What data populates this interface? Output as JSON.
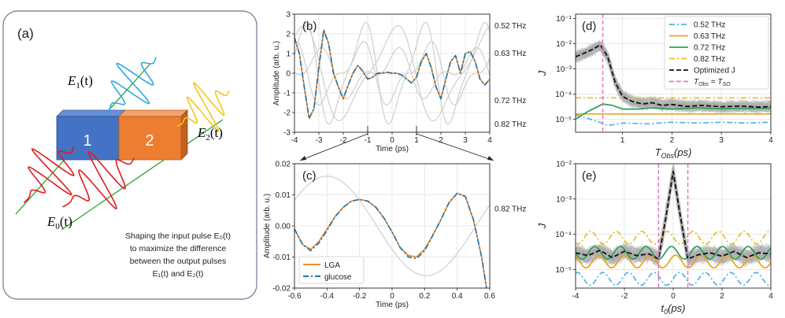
{
  "panel_a": {
    "label": "(a)",
    "block1": "1",
    "block2": "2",
    "e0": "E",
    "e0_sub": "0",
    "e0_arg": "(t)",
    "e1": "E",
    "e1_sub": "1",
    "e1_arg": "(t)",
    "e2": "E",
    "e2_sub": "2",
    "e2_arg": "(t)",
    "caption_line1": "Shaping the input pulse E₀(t)",
    "caption_line2": "to maximize the difference",
    "caption_line3": "between the output pulses",
    "caption_line4": "E₁(t)  and E₂(t)",
    "colors": {
      "block1": "#4472c4",
      "block2": "#ed7d31",
      "e0": "#e31a1c",
      "e1": "#29abe2",
      "e2": "#f5c518",
      "line": "#2ca02c"
    }
  },
  "chart_data": [
    {
      "panel": "(b)",
      "type": "line",
      "xlabel": "Time (ps)",
      "ylabel": "Amplitude (arb. u.)",
      "xlim": [
        -4,
        4
      ],
      "ylim": [
        -3,
        3
      ],
      "xticks": [
        "-4",
        "-3",
        "-2",
        "-1",
        "0",
        "1",
        "2",
        "3",
        "4"
      ],
      "yticks": [
        "-3",
        "-2",
        "-1",
        "0",
        "1",
        "2",
        "3"
      ],
      "grid": true,
      "right_labels": [
        "0.52 THz",
        "0.63 THz",
        "0.72 THz",
        "0.82 THz"
      ],
      "right_label_y": [
        2.4,
        1.0,
        -1.4,
        -2.6
      ],
      "series": [
        {
          "name": "LGA",
          "color": "#f28e2b",
          "style": "solid",
          "x": [
            -4,
            -3.8,
            -3.6,
            -3.4,
            -3.2,
            -3.0,
            -2.8,
            -2.6,
            -2.4,
            -2.2,
            -2.0,
            -1.8,
            -1.6,
            -1.4,
            -1.2,
            -1.0,
            -0.8,
            -0.6,
            -0.4,
            -0.2,
            0.0,
            0.2,
            0.4,
            0.6,
            0.8,
            1.0,
            1.2,
            1.4,
            1.6,
            1.8,
            2.0,
            2.2,
            2.4,
            2.6,
            2.8,
            3.0,
            3.2,
            3.4,
            3.6,
            3.8,
            4.0
          ],
          "values": [
            1.8,
            1.0,
            -0.7,
            -2.3,
            -1.8,
            0.3,
            2.2,
            1.5,
            0.0,
            -0.7,
            -1.3,
            -0.6,
            0.0,
            0.4,
            0.1,
            -0.3,
            -0.2,
            0.0,
            0.0,
            0.05,
            0.0,
            0.0,
            -0.1,
            -0.3,
            -0.5,
            -0.2,
            0.6,
            1.0,
            0.3,
            -0.7,
            -1.3,
            -0.3,
            0.6,
            0.9,
            0.0,
            1.0,
            1.1,
            0.6,
            -0.3,
            -0.6,
            -0.3
          ]
        },
        {
          "name": "glucose",
          "color": "#1f77b4",
          "style": "dashdot",
          "x": [
            -4,
            -3.8,
            -3.6,
            -3.4,
            -3.2,
            -3.0,
            -2.8,
            -2.6,
            -2.4,
            -2.2,
            -2.0,
            -1.8,
            -1.6,
            -1.4,
            -1.2,
            -1.0,
            -0.8,
            -0.6,
            -0.4,
            -0.2,
            0.0,
            0.2,
            0.4,
            0.6,
            0.8,
            1.0,
            1.2,
            1.4,
            1.6,
            1.8,
            2.0,
            2.2,
            2.4,
            2.6,
            2.8,
            3.0,
            3.2,
            3.4,
            3.6,
            3.8,
            4.0
          ],
          "values": [
            1.8,
            1.0,
            -0.7,
            -2.3,
            -1.8,
            0.3,
            2.2,
            1.5,
            0.0,
            -0.7,
            -1.3,
            -0.6,
            0.0,
            0.4,
            0.1,
            -0.3,
            -0.2,
            0.0,
            0.0,
            0.05,
            0.0,
            0.0,
            -0.1,
            -0.3,
            -0.5,
            -0.2,
            0.6,
            1.0,
            0.3,
            -0.7,
            -1.3,
            -0.3,
            0.6,
            0.9,
            0.0,
            1.0,
            1.1,
            0.6,
            -0.3,
            -0.6,
            -0.3
          ]
        }
      ]
    },
    {
      "panel": "(c)",
      "type": "line",
      "xlabel": "Time (ps)",
      "ylabel": "Amplitude (arb. u.)",
      "xlim": [
        -0.6,
        0.6
      ],
      "ylim": [
        -0.02,
        0.02
      ],
      "xticks": [
        "-0.6",
        "-0.4",
        "-0.2",
        "0",
        "0.2",
        "0.4",
        "0.6"
      ],
      "yticks": [
        "-0.02",
        "-0.01",
        "0.00",
        "0.01",
        "0.02"
      ],
      "grid": true,
      "right_labels": [
        "0.82 THz"
      ],
      "legend": [
        "LGA",
        "glucose"
      ],
      "legend_position": "bottom-left",
      "series": [
        {
          "name": "LGA",
          "color": "#f28e2b",
          "style": "solid",
          "x": [
            -0.6,
            -0.55,
            -0.5,
            -0.45,
            -0.4,
            -0.35,
            -0.3,
            -0.25,
            -0.2,
            -0.15,
            -0.1,
            -0.05,
            0.0,
            0.05,
            0.1,
            0.15,
            0.2,
            0.25,
            0.3,
            0.35,
            0.4,
            0.45,
            0.5,
            0.55,
            0.58
          ],
          "values": [
            -0.001,
            -0.006,
            -0.0075,
            -0.005,
            -0.001,
            0.003,
            0.006,
            0.008,
            0.0085,
            0.008,
            0.006,
            0.0025,
            -0.002,
            -0.007,
            -0.0095,
            -0.01,
            -0.0075,
            -0.003,
            0.002,
            0.0075,
            0.0105,
            0.0095,
            0.002,
            -0.01,
            -0.02
          ]
        },
        {
          "name": "glucose",
          "color": "#1f77b4",
          "style": "dashdot",
          "x": [
            -0.6,
            -0.55,
            -0.5,
            -0.45,
            -0.4,
            -0.35,
            -0.3,
            -0.25,
            -0.2,
            -0.15,
            -0.1,
            -0.05,
            0.0,
            0.05,
            0.1,
            0.15,
            0.2,
            0.25,
            0.3,
            0.35,
            0.4,
            0.45,
            0.5,
            0.55,
            0.58
          ],
          "values": [
            -0.001,
            -0.006,
            -0.008,
            -0.0055,
            -0.0015,
            0.003,
            0.006,
            0.008,
            0.0085,
            0.008,
            0.006,
            0.0025,
            -0.002,
            -0.007,
            -0.01,
            -0.0105,
            -0.008,
            -0.003,
            0.002,
            0.0075,
            0.0105,
            0.0095,
            0.002,
            -0.01,
            -0.02
          ]
        }
      ]
    },
    {
      "panel": "(d)",
      "type": "line",
      "xlabel": "T_Obs(ps)",
      "ylabel": "J",
      "xscale": "linear",
      "yscale": "log",
      "xlim": [
        0.05,
        4
      ],
      "ylim": [
        3e-06,
        0.15
      ],
      "xticks": [
        "1",
        "2",
        "3",
        "4"
      ],
      "yticks": [
        "10⁻⁵",
        "10⁻⁴",
        "10⁻³",
        "10⁻²",
        "10⁻¹"
      ],
      "grid": true,
      "vline": 0.6,
      "legend": [
        "0.52 THz",
        "0.63 THz",
        "0.72 THz",
        "0.82 THz",
        "Optimized J",
        "T_Obs = T_SO"
      ],
      "legend_position": "top-right",
      "series": [
        {
          "name": "0.52 THz",
          "color": "#4fb3e8",
          "style": "dashdot",
          "x": [
            0.05,
            0.5,
            0.7,
            1.0,
            1.5,
            2.0,
            2.5,
            3.0,
            3.5,
            4.0
          ],
          "values": [
            1.5e-05,
            8e-06,
            5.5e-06,
            7e-06,
            6.5e-06,
            7.5e-06,
            7e-06,
            7.5e-06,
            7e-06,
            7.5e-06
          ]
        },
        {
          "name": "0.63 THz",
          "color": "#f0a020",
          "style": "solid",
          "x": [
            0.05,
            0.5,
            1.0,
            1.5,
            2.0,
            2.5,
            3.0,
            3.5,
            4.0
          ],
          "values": [
            1.6e-05,
            1.6e-05,
            1.6e-05,
            1.6e-05,
            1.6e-05,
            1.6e-05,
            1.6e-05,
            1.6e-05,
            1.6e-05
          ]
        },
        {
          "name": "0.72 THz",
          "color": "#2ca05a",
          "style": "solid",
          "x": [
            0.05,
            0.3,
            0.6,
            0.8,
            1.0,
            1.3,
            1.6,
            2.0,
            2.5,
            3.0,
            3.5,
            4.0
          ],
          "values": [
            1e-05,
            2e-05,
            4e-05,
            3.5e-05,
            2.5e-05,
            2.5e-05,
            2.8e-05,
            2.5e-05,
            2.8e-05,
            2.6e-05,
            2.7e-05,
            2.7e-05
          ]
        },
        {
          "name": "0.82 THz",
          "color": "#e8c020",
          "style": "dashdot",
          "x": [
            0.05,
            0.5,
            1.0,
            1.5,
            2.0,
            2.5,
            3.0,
            3.5,
            4.0
          ],
          "values": [
            7e-05,
            7e-05,
            7e-05,
            7e-05,
            7e-05,
            7e-05,
            7e-05,
            7e-05,
            7e-05
          ]
        },
        {
          "name": "Optimized J",
          "color": "#111111",
          "style": "dashed",
          "x": [
            0.05,
            0.2,
            0.4,
            0.55,
            0.7,
            0.85,
            1.0,
            1.2,
            1.4,
            1.6,
            1.8,
            2.0,
            2.3,
            2.6,
            3.0,
            3.4,
            3.8,
            4.0
          ],
          "values": [
            0.003,
            0.004,
            0.006,
            0.009,
            0.003,
            0.0003,
            8e-05,
            5e-05,
            4e-05,
            4.5e-05,
            3.5e-05,
            3.8e-05,
            3.2e-05,
            3.5e-05,
            3.1e-05,
            3.3e-05,
            3e-05,
            3.2e-05
          ]
        }
      ]
    },
    {
      "panel": "(e)",
      "type": "line",
      "xlabel": "t_0(ps)",
      "ylabel": "J",
      "xscale": "linear",
      "yscale": "log",
      "xlim": [
        -4,
        4
      ],
      "ylim": [
        3e-06,
        0.01
      ],
      "xticks": [
        "-4",
        "-2",
        "0",
        "2",
        "4"
      ],
      "yticks": [
        "10⁻⁵",
        "10⁻⁴",
        "10⁻³",
        "10⁻²"
      ],
      "grid": true,
      "vlines": [
        -0.6,
        0.6
      ],
      "series": [
        {
          "name": "0.52 THz",
          "color": "#4fb3e8",
          "style": "dashdot",
          "x": [
            -4,
            4
          ],
          "values": [
            5.5e-06,
            5.5e-06
          ]
        },
        {
          "name": "0.63 THz",
          "color": "#f0a020",
          "style": "solid",
          "x": [
            -4,
            4
          ],
          "values": [
            1.7e-05,
            1.7e-05
          ]
        },
        {
          "name": "0.72 THz",
          "color": "#2ca05a",
          "style": "solid",
          "x": [
            -4,
            4
          ],
          "values": [
            3e-05,
            3e-05
          ]
        },
        {
          "name": "0.82 THz",
          "color": "#e8c020",
          "style": "dashdot",
          "x": [
            -4,
            4
          ],
          "values": [
            8e-05,
            8e-05
          ]
        },
        {
          "name": "Optimized J",
          "color": "#111111",
          "style": "dashed",
          "x": [
            -4,
            -3.5,
            -3.0,
            -2.5,
            -2.0,
            -1.5,
            -1.0,
            -0.6,
            -0.3,
            0.0,
            0.3,
            0.6,
            1.0,
            1.5,
            2.0,
            2.5,
            3.0,
            3.5,
            4.0
          ],
          "values": [
            3e-05,
            2.5e-05,
            3.5e-05,
            2.2e-05,
            3.3e-05,
            2.5e-05,
            2.8e-05,
            2e-05,
            0.0003,
            0.006,
            0.0003,
            2e-05,
            2.6e-05,
            3e-05,
            2.4e-05,
            3.3e-05,
            2.2e-05,
            3e-05,
            2.8e-05
          ]
        }
      ]
    }
  ]
}
